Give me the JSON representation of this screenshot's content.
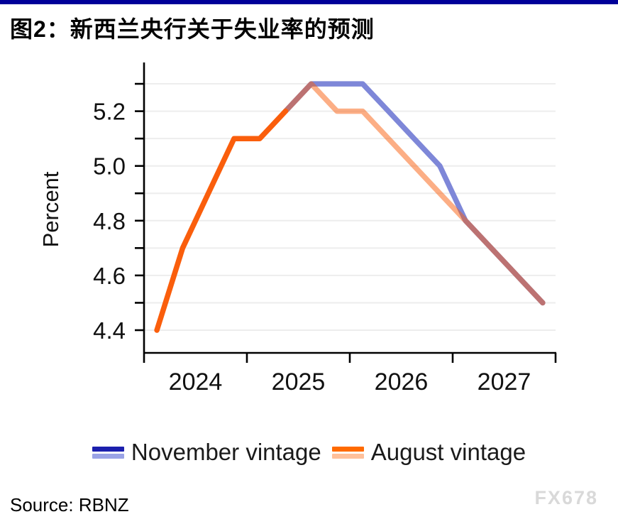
{
  "topbar": {
    "color": "#000099"
  },
  "title": "图2：新西兰央行关于失业率的预测",
  "source_label": "Source: RBNZ",
  "watermark": "FX678",
  "legend": {
    "items": [
      {
        "label": "November vintage",
        "colors": [
          "#1b1fad",
          "#9aa3e6"
        ]
      },
      {
        "label": "August vintage",
        "colors": [
          "#ff6a00",
          "#ffc09a"
        ]
      }
    ]
  },
  "chart_data": {
    "type": "line",
    "title": "图2：新西兰央行关于失业率的预测",
    "xlabel": "",
    "ylabel": "Percent",
    "x_domain": [
      2024.0,
      2028.0
    ],
    "ylim": [
      4.317,
      5.365
    ],
    "grid": true,
    "grid_color": "#ededed",
    "axis_color": "#000000",
    "tick_text_color": "#111111",
    "y_ticks": [
      4.4,
      4.5,
      4.6,
      4.7,
      4.8,
      4.9,
      5.0,
      5.1,
      5.2,
      5.3
    ],
    "y_labeled_ticks": [
      4.4,
      4.6,
      4.8,
      5.0,
      5.2
    ],
    "x_year_ticks": [
      2024,
      2025,
      2026,
      2027,
      2028
    ],
    "x_year_labels": [
      "2024",
      "2025",
      "2026",
      "2027"
    ],
    "legend_position": "bottom",
    "series": [
      {
        "name": "November vintage (forecast)",
        "color": "#7e87d8",
        "opacity": 1,
        "x": [
          2025.375,
          2025.625,
          2025.875,
          2026.125,
          2026.375,
          2026.625,
          2026.875,
          2027.125,
          2027.375,
          2027.625,
          2027.875
        ],
        "values": [
          5.2,
          5.3,
          5.3,
          5.3,
          5.2,
          5.1,
          5.0,
          4.8,
          4.7,
          4.6,
          4.5
        ]
      },
      {
        "name": "August vintage (history)",
        "color": "#fa5e0c",
        "opacity": 1,
        "x": [
          2024.125,
          2024.375,
          2024.625,
          2024.875,
          2025.125,
          2025.375
        ],
        "values": [
          4.4,
          4.7,
          4.9,
          5.1,
          5.1,
          5.2
        ]
      },
      {
        "name": "August vintage (forecast)",
        "color": "#fa5e0c",
        "opacity": 0.5,
        "x": [
          2025.375,
          2025.625,
          2025.875,
          2026.125,
          2026.375,
          2026.625,
          2026.875,
          2027.125,
          2027.375,
          2027.625,
          2027.875
        ],
        "values": [
          5.2,
          5.3,
          5.2,
          5.2,
          5.1,
          5.0,
          4.9,
          4.8,
          4.7,
          4.6,
          4.5
        ]
      }
    ]
  }
}
